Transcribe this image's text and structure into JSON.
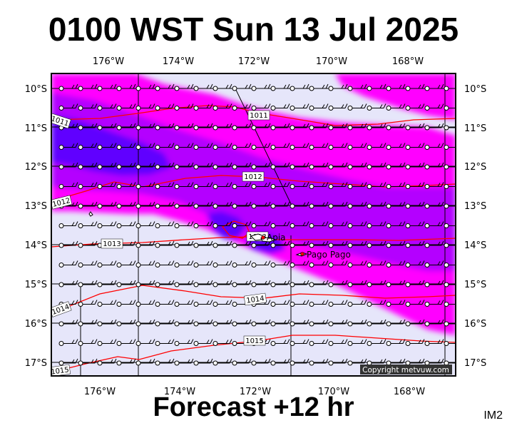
{
  "title": "0100 WST Sun 13 Jul 2025",
  "footer": "Forecast +12 hr",
  "tag": "IM2",
  "copyright": "Copyright metvuw.com",
  "map": {
    "lon_range": [
      -177.3,
      -167.1
    ],
    "lat_range": [
      -17.3,
      -10.4
    ],
    "lon_ticks": [
      "176°W",
      "174°W",
      "172°W",
      "170°W",
      "168°W"
    ],
    "lon_tick_values": [
      -176,
      -174,
      -172,
      -170,
      -168
    ],
    "lat_ticks": [
      "10°S",
      "11°S",
      "12°S",
      "13°S",
      "14°S",
      "15°S",
      "16°S",
      "17°S"
    ],
    "lat_tick_values": [
      -10,
      -11,
      -12,
      -13,
      -14,
      -15,
      -16,
      -17
    ],
    "isobar_labels": [
      "1011",
      "1011",
      "1012",
      "1012",
      "1013",
      "1013",
      "1014",
      "1014",
      "1015",
      "1015"
    ],
    "places": [
      {
        "name": "Apia",
        "lon": -171.75,
        "lat": -13.83
      },
      {
        "name": "Pago Pago",
        "lon": -170.7,
        "lat": -14.28
      }
    ],
    "colors": {
      "background": "#e6e6fa",
      "rain_light": "#ff00ff",
      "rain_medium": "#b400ff",
      "rain_heavy": "#6000ff",
      "isobar": "#ff0000"
    }
  }
}
